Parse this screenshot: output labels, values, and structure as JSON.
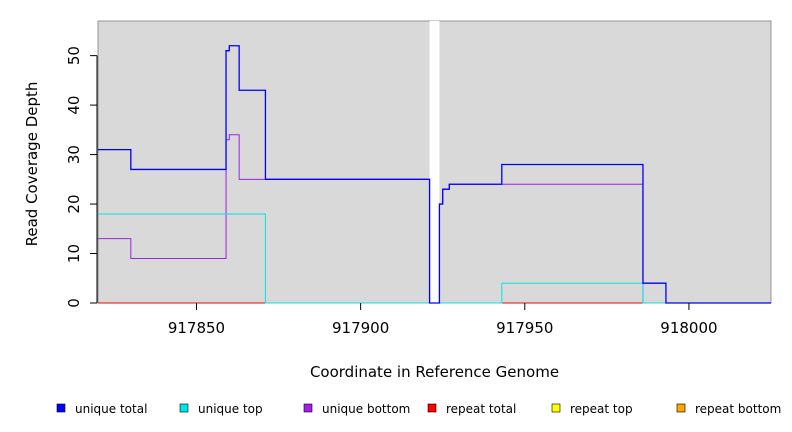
{
  "chart_data": {
    "type": "line",
    "title": "",
    "xlabel": "Coordinate in Reference Genome",
    "ylabel": "Read Coverage Depth",
    "xlim": [
      917820,
      918025
    ],
    "ylim": [
      0,
      57
    ],
    "x_ticks": [
      917850,
      917900,
      917950,
      918000
    ],
    "y_ticks": [
      0,
      10,
      20,
      30,
      40,
      50
    ],
    "x_tick_labels": [
      "917850",
      "917900",
      "917950",
      "918000"
    ],
    "y_tick_labels": [
      "0",
      "10",
      "20",
      "30",
      "40",
      "50"
    ],
    "background_color": "#d9d9d9",
    "gap_regions": [
      [
        917921,
        917924
      ]
    ],
    "grid": false,
    "legend_position": "bottom",
    "series": [
      {
        "name": "unique total",
        "color": "#0000ff",
        "steps": [
          [
            917820,
            31
          ],
          [
            917830,
            27
          ],
          [
            917859,
            51
          ],
          [
            917860,
            52
          ],
          [
            917863,
            43
          ],
          [
            917871,
            25
          ],
          [
            917921,
            0
          ],
          [
            917924,
            20
          ],
          [
            917925,
            23
          ],
          [
            917927,
            24
          ],
          [
            917943,
            28
          ],
          [
            917986,
            4
          ],
          [
            917993,
            0
          ],
          [
            918025,
            0
          ]
        ]
      },
      {
        "name": "unique top",
        "color": "#00e5e5",
        "steps": [
          [
            917820,
            18
          ],
          [
            917871,
            0
          ],
          [
            917943,
            4
          ],
          [
            917986,
            0
          ],
          [
            918025,
            0
          ]
        ]
      },
      {
        "name": "unique bottom",
        "color": "#a020f0",
        "steps": [
          [
            917820,
            13
          ],
          [
            917830,
            9
          ],
          [
            917859,
            33
          ],
          [
            917860,
            34
          ],
          [
            917863,
            25
          ],
          [
            917921,
            0
          ],
          [
            917924,
            20
          ],
          [
            917925,
            23
          ],
          [
            917927,
            24
          ],
          [
            917986,
            0
          ],
          [
            918025,
            0
          ]
        ]
      },
      {
        "name": "repeat total",
        "color": "#ff0000",
        "steps": [
          [
            917820,
            0
          ],
          [
            918025,
            0
          ]
        ]
      },
      {
        "name": "repeat top",
        "color": "#ffff00",
        "steps": [
          [
            917820,
            0
          ],
          [
            918025,
            0
          ]
        ]
      },
      {
        "name": "repeat bottom",
        "color": "#ffa500",
        "steps": [
          [
            917820,
            0
          ],
          [
            918025,
            0
          ]
        ]
      }
    ]
  }
}
